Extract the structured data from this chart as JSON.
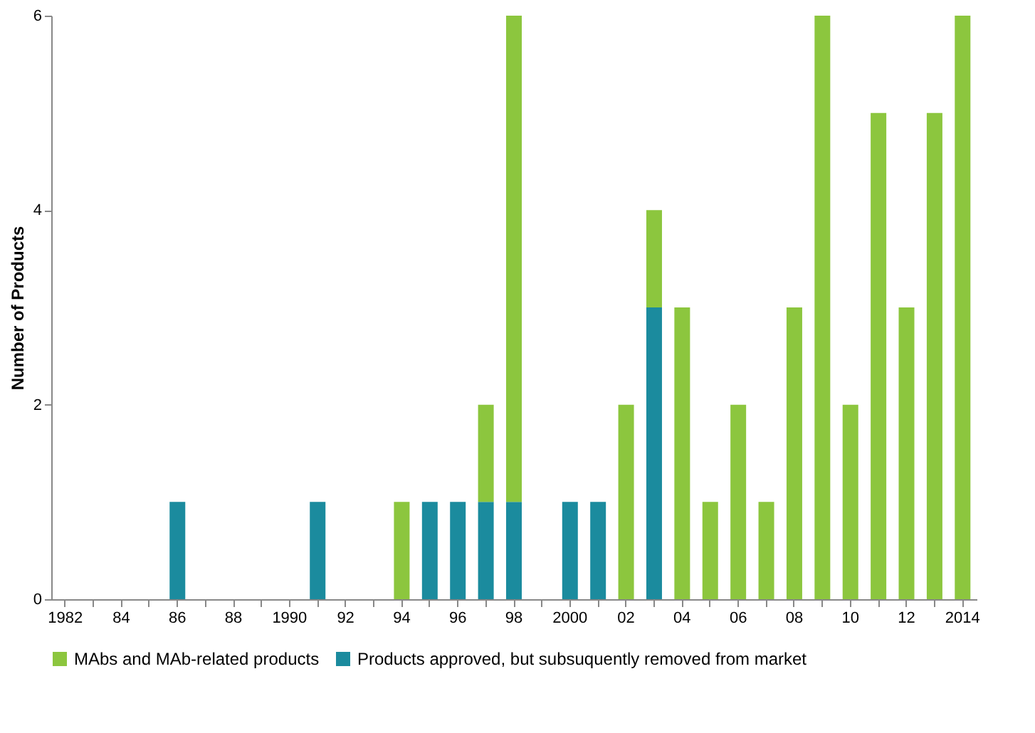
{
  "chart_data": {
    "type": "bar",
    "stacked": true,
    "ylabel": "Number of Products",
    "categories": [
      "1982",
      null,
      "84",
      null,
      "86",
      null,
      "88",
      null,
      "1990",
      null,
      "92",
      null,
      "94",
      null,
      "96",
      null,
      "98",
      null,
      "2000",
      null,
      "02",
      null,
      "04",
      null,
      "06",
      null,
      "08",
      null,
      "10",
      null,
      "12",
      null,
      "2014"
    ],
    "series": [
      {
        "name": "Products approved, but subsuquently removed from market",
        "color": "#1b8b9e",
        "values": [
          0,
          0,
          0,
          0,
          1,
          0,
          0,
          0,
          0,
          1,
          0,
          0,
          0,
          1,
          1,
          1,
          1,
          0,
          1,
          1,
          0,
          3,
          0,
          0,
          0,
          0,
          0,
          0,
          0,
          0,
          0,
          0,
          0
        ]
      },
      {
        "name": "MAbs and MAb-related products",
        "color": "#8cc63e",
        "values": [
          0,
          0,
          0,
          0,
          0,
          0,
          0,
          0,
          0,
          0,
          0,
          0,
          1,
          0,
          0,
          1,
          5,
          0,
          0,
          0,
          2,
          1,
          3,
          1,
          2,
          1,
          3,
          6,
          2,
          5,
          3,
          5,
          6
        ]
      }
    ],
    "ylim": [
      0,
      6
    ],
    "yticks": [
      0,
      2,
      4,
      6
    ],
    "grid": false,
    "legend": "bottom"
  }
}
